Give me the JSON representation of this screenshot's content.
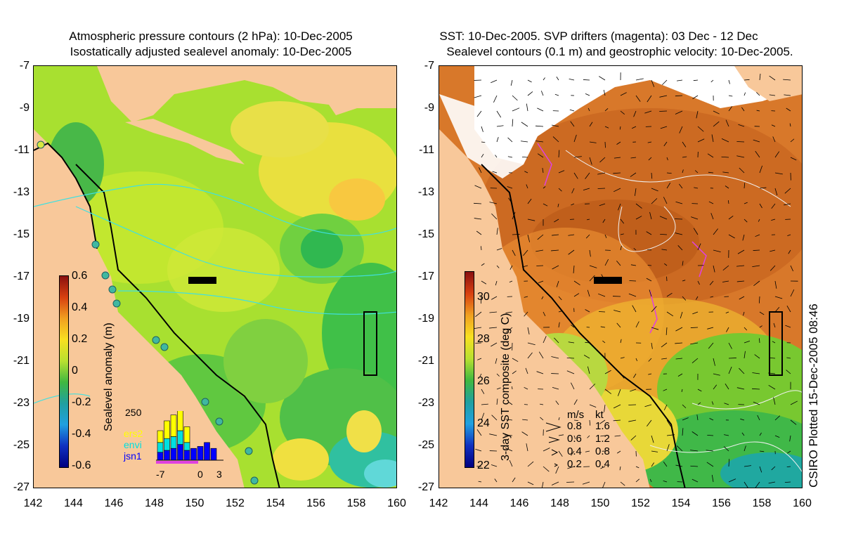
{
  "left_panel": {
    "title_line1": "Atmospheric pressure contours (2 hPa): 10-Dec-2005",
    "title_line2": "Isostatically adjusted sealevel anomaly: 10-Dec-2005",
    "colorbar_label": "Sealevel anomaly (m)",
    "colorbar_ticks": [
      "0.6",
      "0.4",
      "0.2",
      "0",
      "-0.2",
      "-0.4",
      "-0.6"
    ],
    "inset": {
      "ymax_label": "250",
      "series_labels": [
        "ers2",
        "envi",
        "jsn1"
      ],
      "series_colors": [
        "#ffff00",
        "#00e0e0",
        "#0000ff"
      ],
      "x_labels": [
        "-7",
        "0",
        "3"
      ],
      "bars_ers2": [
        60,
        90,
        110,
        120,
        80,
        0,
        0,
        0,
        0
      ],
      "bars_envi": [
        50,
        60,
        60,
        70,
        40,
        0,
        0,
        0,
        0
      ],
      "bars_jsn1": [
        40,
        50,
        60,
        80,
        50,
        60,
        70,
        90,
        60
      ]
    }
  },
  "right_panel": {
    "title_line1": "SST: 10-Dec-2005. SVP drifters (magenta): 03 Dec - 12 Dec",
    "title_line2": "Sealevel contours (0.1 m) and geostrophic velocity: 10-Dec-2005.",
    "colorbar_label": "3-day SST composite (deg C)",
    "colorbar_ticks": [
      "30",
      "28",
      "26",
      "24",
      "22"
    ],
    "vector_legend": {
      "header_ms": "m/s",
      "header_kt": "kt",
      "rows": [
        {
          "ms": "0.8",
          "kt": "1.6"
        },
        {
          "ms": "0.6",
          "kt": "1.2"
        },
        {
          "ms": "0.4",
          "kt": "0.8"
        },
        {
          "ms": "0.2",
          "kt": "0.4"
        }
      ]
    }
  },
  "axes": {
    "y_ticks": [
      "-7",
      "-9",
      "-11",
      "-13",
      "-15",
      "-17",
      "-19",
      "-21",
      "-23",
      "-25",
      "-27"
    ],
    "x_ticks": [
      "142",
      "144",
      "146",
      "148",
      "150",
      "152",
      "154",
      "156",
      "158",
      "160"
    ]
  },
  "credit": "CSIRO Plotted 15-Dec-2005 08:46",
  "colors": {
    "land": "#f8c89a",
    "sla_mid": "#a8e030",
    "sst_warm": "#d8782a"
  }
}
